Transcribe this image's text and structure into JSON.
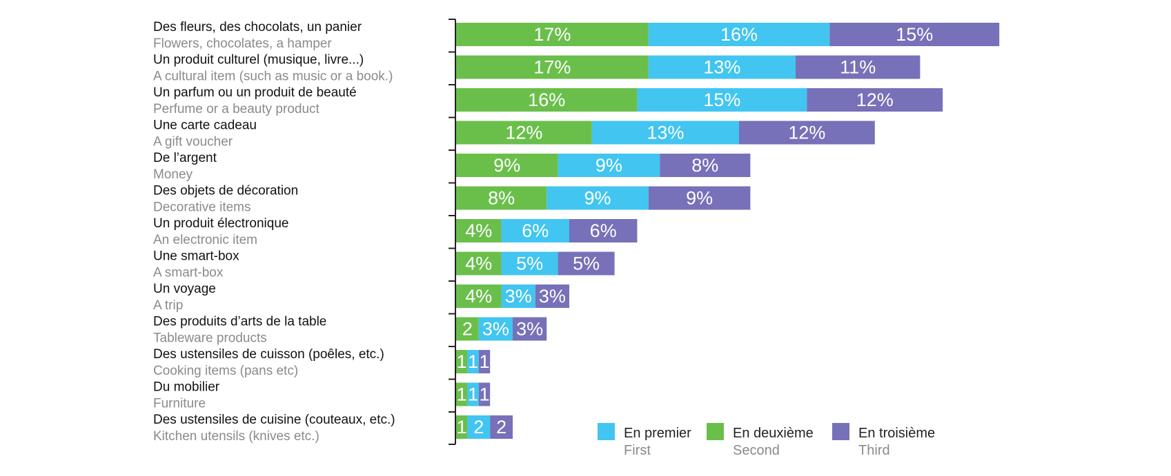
{
  "chart_data": {
    "type": "bar",
    "orientation": "horizontal",
    "stacked": true,
    "title": "",
    "xlabel": "",
    "ylabel": "",
    "categories": [
      {
        "fr": "Des fleurs, des chocolats, un panier",
        "en": "Flowers, chocolates, a hamper"
      },
      {
        "fr": "Un produit culturel (musique, livre...)",
        "en": "A cultural item (such as music or a book.)"
      },
      {
        "fr": "Un parfum ou un produit de beauté",
        "en": "Perfume or a beauty product"
      },
      {
        "fr": "Une carte cadeau",
        "en": "A gift voucher"
      },
      {
        "fr": "De l’argent",
        "en": "Money"
      },
      {
        "fr": "Des objets de décoration",
        "en": "Decorative items"
      },
      {
        "fr": "Un produit électronique",
        "en": "An electronic item"
      },
      {
        "fr": "Une smart-box",
        "en": "A smart-box"
      },
      {
        "fr": "Un voyage",
        "en": "A trip"
      },
      {
        "fr": "Des produits d’arts de la table",
        "en": "Tableware products"
      },
      {
        "fr": "Des ustensiles de cuisson (poêles, etc.)",
        "en": "Cooking items (pans etc)"
      },
      {
        "fr": "Du mobilier",
        "en": "Furniture"
      },
      {
        "fr": "Des ustensiles de cuisine (couteaux, etc.)",
        "en": "Kitchen utensils (knives etc.)"
      }
    ],
    "series": [
      {
        "key": "second",
        "color": "#6abf4b",
        "values": [
          17,
          17,
          16,
          12,
          9,
          8,
          4,
          4,
          4,
          2,
          1,
          1,
          1
        ],
        "labels": [
          "17%",
          "17%",
          "16%",
          "12%",
          "9%",
          "8%",
          "4%",
          "4%",
          "4%",
          "2",
          "1",
          "1",
          "1"
        ]
      },
      {
        "key": "first",
        "color": "#42c5f0",
        "values": [
          16,
          13,
          15,
          13,
          9,
          9,
          6,
          5,
          3,
          3,
          1,
          1,
          2
        ],
        "labels": [
          "16%",
          "13%",
          "15%",
          "13%",
          "9%",
          "9%",
          "6%",
          "5%",
          "3%",
          "3%",
          "1",
          "1",
          "2"
        ]
      },
      {
        "key": "third",
        "color": "#7671b8",
        "values": [
          15,
          11,
          12,
          12,
          8,
          9,
          6,
          5,
          3,
          3,
          1,
          1,
          2
        ],
        "labels": [
          "15%",
          "11%",
          "12%",
          "12%",
          "8%",
          "9%",
          "6%",
          "5%",
          "3%",
          "3%",
          "1",
          "1",
          "2"
        ]
      }
    ],
    "legend": {
      "position": "bottom-right",
      "items": [
        {
          "fr": "En premier",
          "en": "First",
          "color": "#42c5f0"
        },
        {
          "fr": "En deuxième",
          "en": "Second",
          "color": "#6abf4b"
        },
        {
          "fr": "En troisième",
          "en": "Third",
          "color": "#7671b8"
        }
      ]
    },
    "grid": false
  }
}
